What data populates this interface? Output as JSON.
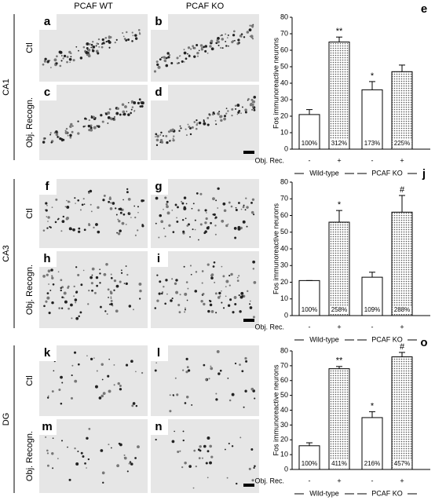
{
  "figure": {
    "columns": [
      "PCAF WT",
      "PCAF KO"
    ],
    "sections": [
      {
        "label": "CA1",
        "rows": [
          "Ctl",
          "Obj. Recogn."
        ],
        "panels": [
          "a",
          "b",
          "c",
          "d"
        ]
      },
      {
        "label": "CA3",
        "rows": [
          "Ctl",
          "Obj. Recogn."
        ],
        "panels": [
          "f",
          "g",
          "h",
          "i"
        ]
      },
      {
        "label": "DG",
        "rows": [
          "Ctl",
          "Obj. Recogn."
        ],
        "panels": [
          "k",
          "l",
          "m",
          "n"
        ]
      }
    ]
  },
  "chart_data": [
    {
      "type": "bar",
      "letter": "e",
      "ylabel": "Fos immunoreactive neurons",
      "row_label": "Obj. Rec.",
      "categories": [
        "-",
        "+",
        "-",
        "+"
      ],
      "groups": [
        "Wild-type",
        "PCAF KO"
      ],
      "values": [
        21,
        65,
        36,
        47
      ],
      "errors": [
        3,
        3,
        5,
        4
      ],
      "percent_labels": [
        "100%",
        "312%",
        "173%",
        "225%"
      ],
      "significance": [
        null,
        "**",
        "*",
        null
      ],
      "fills": [
        "white",
        "dotted",
        "white",
        "dotted"
      ],
      "ylim": [
        0,
        80
      ],
      "yticks": [
        0,
        10,
        20,
        30,
        40,
        50,
        60,
        70,
        80
      ]
    },
    {
      "type": "bar",
      "letter": "j",
      "ylabel": "Fos immunoreactive neurons",
      "row_label": "Obj. Rec.",
      "categories": [
        "-",
        "+",
        "-",
        "+"
      ],
      "groups": [
        "Wild-type",
        "PCAF KO"
      ],
      "values": [
        21,
        56,
        23,
        62
      ],
      "errors": [
        0,
        7,
        3,
        10
      ],
      "percent_labels": [
        "100%",
        "258%",
        "109%",
        "288%"
      ],
      "significance": [
        null,
        "*",
        null,
        "#"
      ],
      "fills": [
        "white",
        "dotted",
        "white",
        "dotted"
      ],
      "ylim": [
        0,
        80
      ],
      "yticks": [
        0,
        10,
        20,
        30,
        40,
        50,
        60,
        70,
        80
      ]
    },
    {
      "type": "bar",
      "letter": "o",
      "ylabel": "Fos immunoreactive neurons",
      "row_label": "Obj. Rec.",
      "categories": [
        "-",
        "+",
        "-",
        "+"
      ],
      "groups": [
        "Wild-type",
        "PCAF KO"
      ],
      "values": [
        16,
        68,
        35,
        76
      ],
      "errors": [
        2,
        1.5,
        4,
        3
      ],
      "percent_labels": [
        "100%",
        "411%",
        "216%",
        "457%"
      ],
      "significance": [
        null,
        "**",
        "*",
        "#"
      ],
      "fills": [
        "white",
        "dotted",
        "white",
        "dotted"
      ],
      "ylim": [
        0,
        80
      ],
      "yticks": [
        0,
        10,
        20,
        30,
        40,
        50,
        60,
        70,
        80
      ]
    }
  ]
}
